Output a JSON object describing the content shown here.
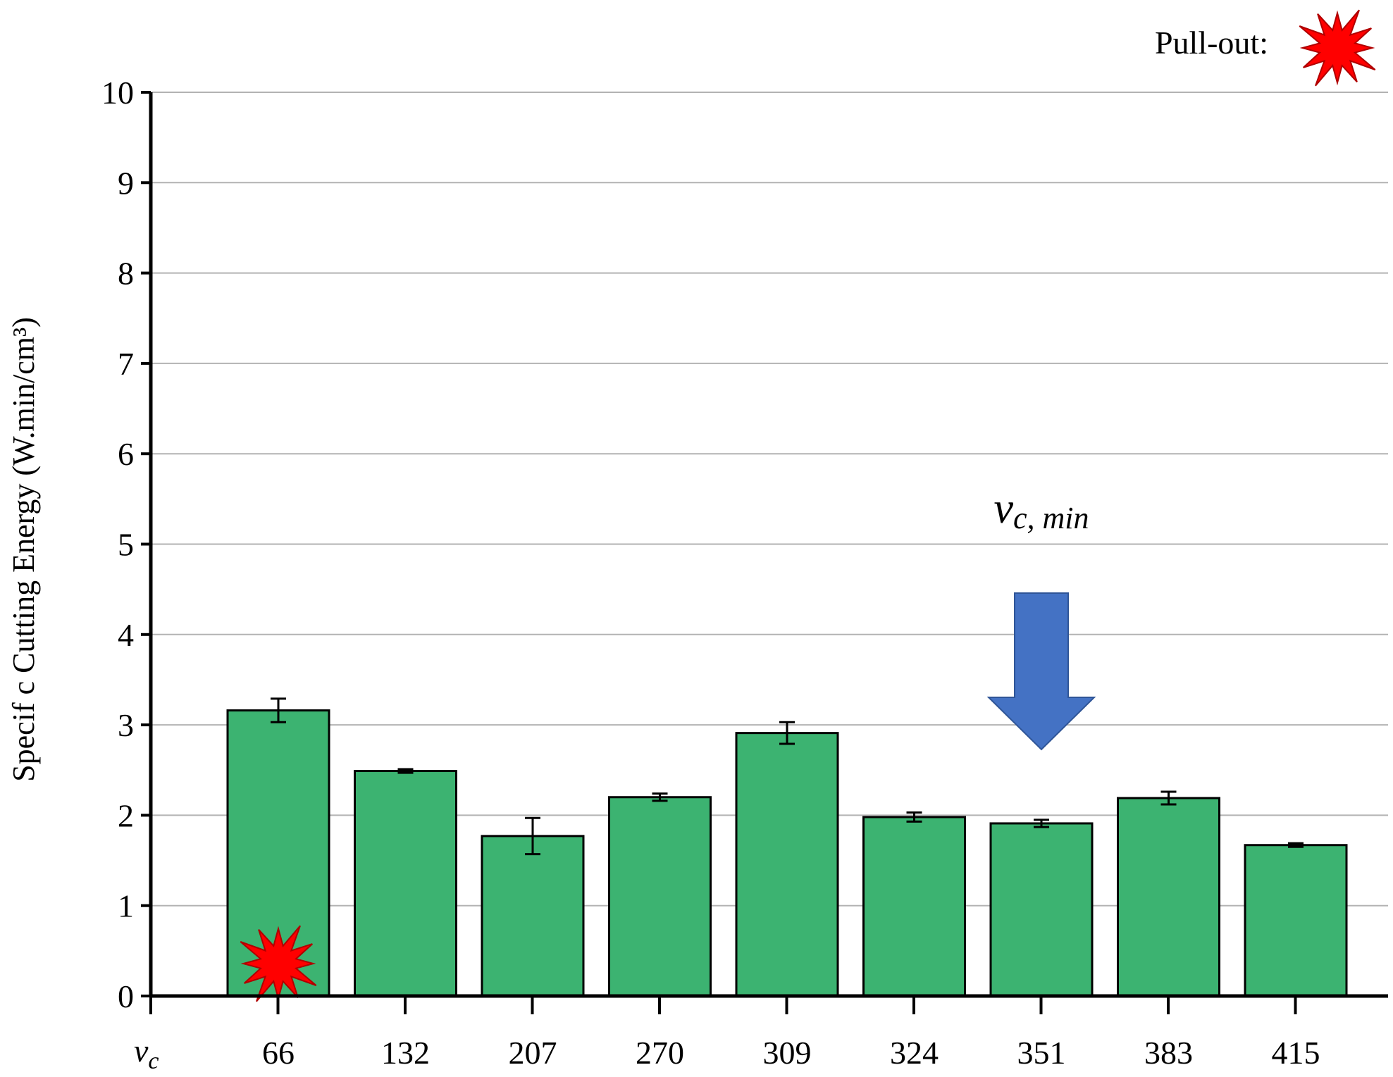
{
  "chart_data": {
    "type": "bar",
    "title": "",
    "xlabel": "v",
    "xlabel_sub": "c",
    "ylabel": "Specif c Cutting Energy (W.min/cm³)",
    "categories": [
      "66",
      "132",
      "207",
      "270",
      "309",
      "324",
      "351",
      "383",
      "415"
    ],
    "series": [
      {
        "values": [
          3.16,
          2.49,
          1.77,
          2.2,
          2.91,
          1.98,
          1.91,
          2.19,
          1.67
        ],
        "errors": [
          0.13,
          0.02,
          0.2,
          0.04,
          0.12,
          0.05,
          0.04,
          0.07,
          0.02
        ]
      }
    ],
    "ylim": [
      0,
      10
    ],
    "yticks": [
      0,
      1,
      2,
      3,
      4,
      5,
      6,
      7,
      8,
      9,
      10
    ],
    "grid": "horizontal",
    "bar_color": "#3cb371",
    "legend": {
      "label": "Pull-out:",
      "marker": "red-starburst",
      "marker_color": "#ff0000",
      "placement": "top-right"
    },
    "markers": [
      {
        "category": "66",
        "type": "pull-out",
        "icon": "red-starburst"
      }
    ],
    "annotations": [
      {
        "category": "351",
        "text": "v",
        "text_sub": "c, min",
        "arrow": "down-arrow",
        "arrow_color": "#4472c4"
      }
    ]
  }
}
